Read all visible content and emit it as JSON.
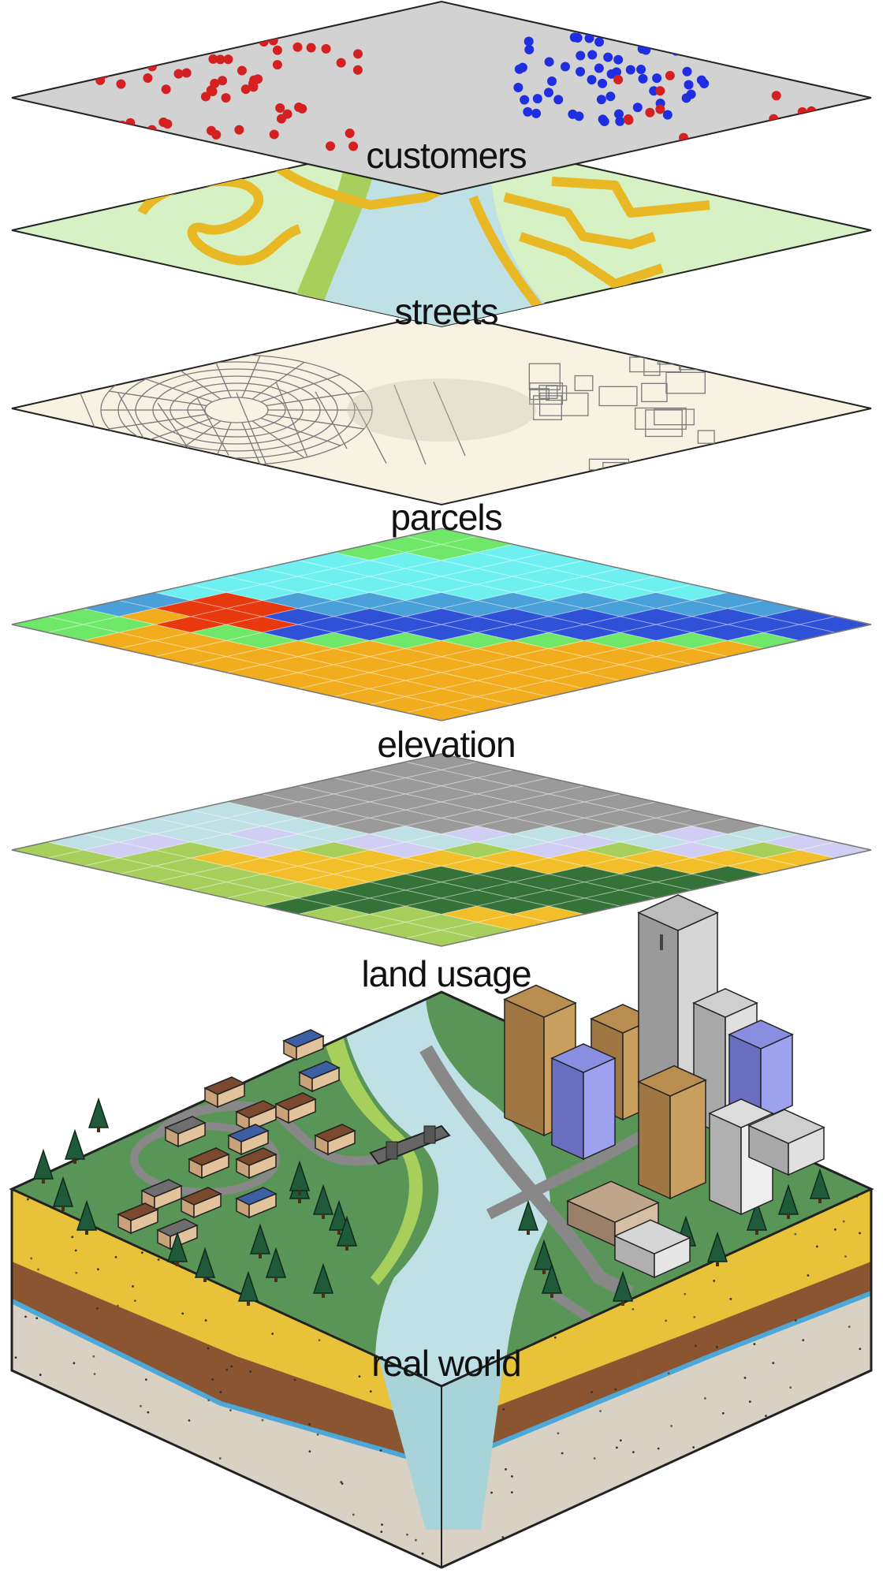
{
  "diagram": {
    "layers": [
      {
        "id": "customers",
        "label": "customers"
      },
      {
        "id": "streets",
        "label": "streets"
      },
      {
        "id": "parcels",
        "label": "parcels"
      },
      {
        "id": "elevation",
        "label": "elevation"
      },
      {
        "id": "land-usage",
        "label": "land usage"
      },
      {
        "id": "real-world",
        "label": "real world"
      }
    ]
  },
  "colors": {
    "customer_point_red": "#d42020",
    "customer_point_blue": "#1f2ee0",
    "customers_plate": "#d2d2d2",
    "streets_plate": "#d6f2c4",
    "street_road": "#e8b825",
    "parcels_plate": "#f7f2e2",
    "elevation_low_blue": "#2f51d8",
    "elevation_cyan": "#6ff0f0",
    "elevation_green": "#6fe86a",
    "elevation_orange": "#f2ad1e",
    "elevation_red": "#e8380e",
    "landuse_yellow": "#f2bf2a",
    "landuse_green": "#a6cf5c",
    "landuse_dark_green": "#357238",
    "landuse_lavender": "#d0cef2",
    "landuse_gray": "#9a9a9a",
    "water": "#bfe0e4",
    "terrain_grass": "#5a9558",
    "soil_yellow": "#e8c238",
    "soil_brown": "#8a5530",
    "soil_bedrock": "#d9d2c4"
  }
}
